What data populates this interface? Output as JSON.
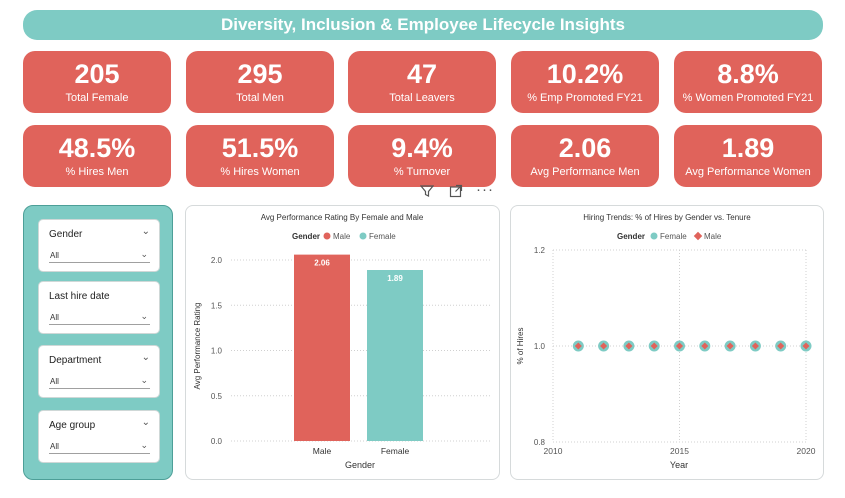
{
  "header": {
    "title": "Diversity, Inclusion & Employee Lifecycle Insights"
  },
  "kpis_row1": [
    {
      "value": "205",
      "label": "Total Female"
    },
    {
      "value": "295",
      "label": "Total Men"
    },
    {
      "value": "47",
      "label": "Total Leavers"
    },
    {
      "value": "10.2%",
      "label": "% Emp Promoted FY21"
    },
    {
      "value": "8.8%",
      "label": "% Women Promoted FY21"
    }
  ],
  "kpis_row2": [
    {
      "value": "48.5%",
      "label": "% Hires Men"
    },
    {
      "value": "51.5%",
      "label": "% Hires Women"
    },
    {
      "value": "9.4%",
      "label": "% Turnover"
    },
    {
      "value": "2.06",
      "label": "Avg Performance Men"
    },
    {
      "value": "1.89",
      "label": "Avg Performance Women"
    }
  ],
  "filters": [
    {
      "label": "Gender",
      "value": "All"
    },
    {
      "label": "Last hire date",
      "value": "All"
    },
    {
      "label": "Department",
      "value": "All"
    },
    {
      "label": "Age group",
      "value": "All"
    }
  ],
  "colors": {
    "male": "#e0635b",
    "female": "#7ecbc4"
  },
  "chart_data": [
    {
      "type": "bar",
      "title": "Avg Performance Rating By Female and Male",
      "legend_title": "Gender",
      "legend": [
        "Male",
        "Female"
      ],
      "categories": [
        "Male",
        "Female"
      ],
      "values": [
        2.06,
        1.89
      ],
      "data_labels": [
        "2.06",
        "1.89"
      ],
      "xlabel": "Gender",
      "ylabel": "Avg Performance Rating",
      "ylim": [
        0,
        2.1
      ],
      "yticks": [
        "0.0",
        "0.5",
        "1.0",
        "1.5",
        "2.0"
      ],
      "grid": true
    },
    {
      "type": "scatter",
      "title": "Hiring Trends: % of Hires by Gender vs. Tenure",
      "legend_title": "Gender",
      "legend": [
        "Female",
        "Male"
      ],
      "series": [
        {
          "name": "Female",
          "x": [
            2011,
            2012,
            2013,
            2014,
            2015,
            2016,
            2017,
            2018,
            2019,
            2020
          ],
          "y": [
            1,
            1,
            1,
            1,
            1,
            1,
            1,
            1,
            1,
            1
          ]
        },
        {
          "name": "Male",
          "x": [
            2011,
            2012,
            2013,
            2014,
            2015,
            2016,
            2017,
            2018,
            2019,
            2020
          ],
          "y": [
            1,
            1,
            1,
            1,
            1,
            1,
            1,
            1,
            1,
            1
          ]
        }
      ],
      "xlabel": "Year",
      "ylabel": "% of Hires",
      "xlim": [
        2010,
        2020
      ],
      "ylim": [
        0.8,
        1.2
      ],
      "xticks": [
        "2010",
        "2015",
        "2020"
      ],
      "yticks": [
        "0.8",
        "1.0",
        "1.2"
      ],
      "grid": true
    }
  ]
}
